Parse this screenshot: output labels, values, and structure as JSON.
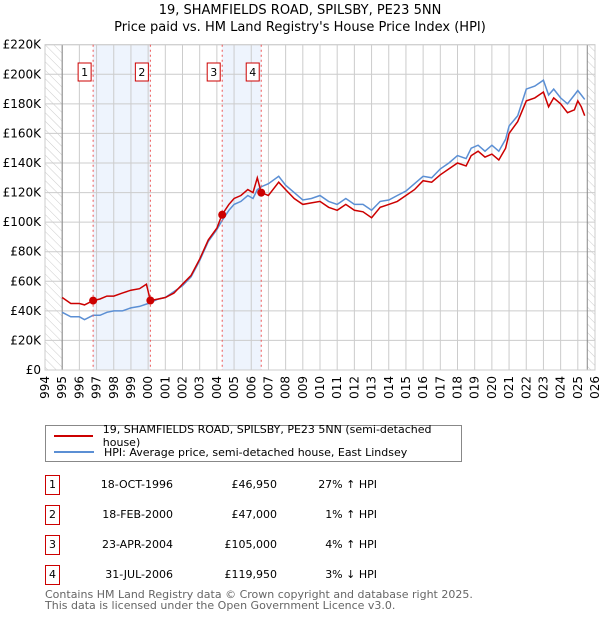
{
  "chart_data": {
    "type": "line",
    "title": "19, SHAMFIELDS ROAD, SPILSBY, PE23 5NN",
    "subtitle": "Price paid vs. HM Land Registry's House Price Index (HPI)",
    "xlim": [
      1994,
      2026
    ],
    "ylim": [
      0,
      220000
    ],
    "x_ticks": [
      "1994",
      "1995",
      "1996",
      "1997",
      "1998",
      "1999",
      "2000",
      "2001",
      "2002",
      "2003",
      "2004",
      "2005",
      "2006",
      "2007",
      "2008",
      "2009",
      "2010",
      "2011",
      "2012",
      "2013",
      "2014",
      "2015",
      "2016",
      "2017",
      "2018",
      "2019",
      "2020",
      "2021",
      "2022",
      "2023",
      "2024",
      "2025",
      "2026"
    ],
    "y_ticks": [
      "£0",
      "£20K",
      "£40K",
      "£60K",
      "£80K",
      "£100K",
      "£120K",
      "£140K",
      "£160K",
      "£180K",
      "£200K",
      "£220K"
    ],
    "grid": true,
    "series": [
      {
        "name": "19, SHAMFIELDS ROAD, SPILSBY, PE23 5NN (semi-detached house)",
        "color": "#cc0000",
        "x": [
          1995,
          1995.5,
          1996,
          1996.3,
          1996.8,
          1997.2,
          1997.6,
          1998,
          1998.5,
          1999,
          1999.5,
          1999.9,
          2000.13,
          2000.6,
          2001,
          2001.5,
          2002,
          2002.5,
          2003,
          2003.5,
          2004,
          2004.3,
          2004.7,
          2005,
          2005.4,
          2005.8,
          2006.1,
          2006.35,
          2006.58,
          2007,
          2007.6,
          2008,
          2008.5,
          2009,
          2009.5,
          2010,
          2010.5,
          2011,
          2011.5,
          2012,
          2012.5,
          2013,
          2013.5,
          2014,
          2014.5,
          2015,
          2015.5,
          2016,
          2016.5,
          2017,
          2017.5,
          2018,
          2018.5,
          2018.8,
          2019.2,
          2019.6,
          2020,
          2020.4,
          2020.8,
          2021,
          2021.5,
          2022,
          2022.5,
          2023,
          2023.3,
          2023.6,
          2024,
          2024.4,
          2024.8,
          2025,
          2025.2,
          2025.4
        ],
        "y": [
          49000,
          45000,
          45000,
          44000,
          46950,
          48000,
          50000,
          50000,
          52000,
          54000,
          55000,
          58000,
          47000,
          48000,
          49000,
          52000,
          58000,
          64000,
          75000,
          88000,
          96000,
          105000,
          112000,
          116000,
          118000,
          122000,
          120000,
          130000,
          119950,
          118000,
          127000,
          122000,
          116000,
          112000,
          113000,
          114000,
          110000,
          108000,
          112000,
          108000,
          107000,
          103000,
          110000,
          112000,
          114000,
          118000,
          122000,
          128000,
          127000,
          132000,
          136000,
          140000,
          138000,
          145000,
          148000,
          144000,
          146000,
          142000,
          150000,
          160000,
          168000,
          182000,
          184000,
          188000,
          178000,
          184000,
          180000,
          174000,
          176000,
          182000,
          178000,
          172000
        ]
      },
      {
        "name": "HPI: Average price, semi-detached house, East Lindsey",
        "color": "#5b8fd4",
        "x": [
          1995,
          1995.5,
          1996,
          1996.3,
          1996.8,
          1997.2,
          1997.6,
          1998,
          1998.5,
          1999,
          1999.5,
          2000,
          2000.6,
          2001,
          2001.5,
          2002,
          2002.5,
          2003,
          2003.5,
          2004,
          2004.3,
          2004.7,
          2005,
          2005.4,
          2005.8,
          2006.1,
          2006.35,
          2006.6,
          2007,
          2007.6,
          2008,
          2008.5,
          2009,
          2009.5,
          2010,
          2010.5,
          2011,
          2011.5,
          2012,
          2012.5,
          2013,
          2013.5,
          2014,
          2014.5,
          2015,
          2015.5,
          2016,
          2016.5,
          2017,
          2017.5,
          2018,
          2018.5,
          2018.8,
          2019.2,
          2019.6,
          2020,
          2020.4,
          2020.8,
          2021,
          2021.5,
          2022,
          2022.5,
          2023,
          2023.3,
          2023.6,
          2024,
          2024.4,
          2024.8,
          2025,
          2025.2,
          2025.4
        ],
        "y": [
          39000,
          36000,
          36000,
          34000,
          37000,
          37000,
          39000,
          40000,
          40000,
          42000,
          43000,
          45000,
          48000,
          49000,
          53000,
          57000,
          63000,
          74000,
          87000,
          95000,
          101000,
          108000,
          112000,
          114000,
          118000,
          116000,
          122000,
          124000,
          126000,
          131000,
          125000,
          120000,
          115000,
          116000,
          118000,
          114000,
          112000,
          116000,
          112000,
          112000,
          108000,
          114000,
          115000,
          118000,
          121000,
          126000,
          131000,
          130000,
          136000,
          140000,
          145000,
          143000,
          150000,
          152000,
          148000,
          152000,
          148000,
          156000,
          165000,
          172000,
          190000,
          192000,
          196000,
          186000,
          190000,
          184000,
          180000,
          186000,
          189000,
          186000,
          183000
        ]
      }
    ],
    "sales": [
      {
        "label": "1",
        "x": 1996.8,
        "y": 46950
      },
      {
        "label": "2",
        "x": 2000.13,
        "y": 47000
      },
      {
        "label": "3",
        "x": 2004.31,
        "y": 105000
      },
      {
        "label": "4",
        "x": 2006.58,
        "y": 119950
      }
    ],
    "shaded_ranges": [
      [
        1996.8,
        2000.13
      ],
      [
        2004.31,
        2006.58
      ]
    ],
    "hatched_ranges": [
      [
        1994,
        1995
      ],
      [
        2025.55,
        2026
      ]
    ]
  },
  "legend": {
    "red": "19, SHAMFIELDS ROAD, SPILSBY, PE23 5NN (semi-detached house)",
    "blue": "HPI: Average price, semi-detached house, East Lindsey"
  },
  "transactions": [
    {
      "num": "1",
      "date": "18-OCT-1996",
      "price": "£46,950",
      "hpi": "27% ↑ HPI"
    },
    {
      "num": "2",
      "date": "18-FEB-2000",
      "price": "£47,000",
      "hpi": "1% ↑ HPI"
    },
    {
      "num": "3",
      "date": "23-APR-2004",
      "price": "£105,000",
      "hpi": "4% ↑ HPI"
    },
    {
      "num": "4",
      "date": "31-JUL-2006",
      "price": "£119,950",
      "hpi": "3% ↓ HPI"
    }
  ],
  "footer": {
    "line1": "Contains HM Land Registry data © Crown copyright and database right 2025.",
    "line2": "This data is licensed under the Open Government Licence v3.0."
  }
}
